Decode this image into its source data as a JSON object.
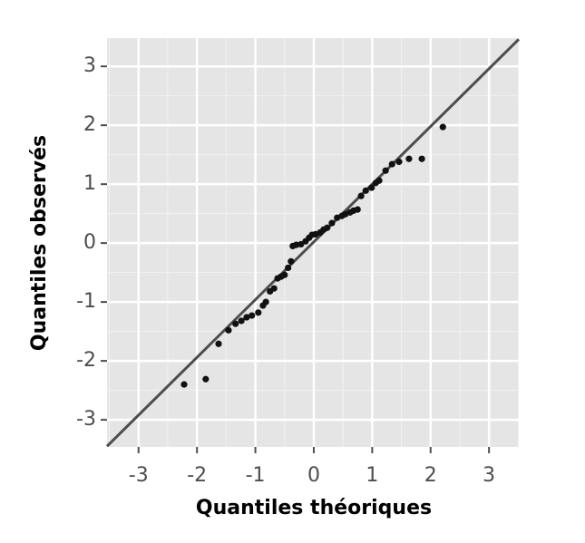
{
  "chart_data": {
    "type": "scatter",
    "x_label": "Quantiles théoriques",
    "y_label": "Quantiles observés",
    "x": [
      -2.22,
      -1.85,
      -1.63,
      -1.46,
      -1.34,
      -1.24,
      -1.15,
      -1.06,
      -0.95,
      -0.87,
      -0.82,
      -0.75,
      -0.68,
      -0.62,
      -0.56,
      -0.5,
      -0.44,
      -0.39,
      -0.36,
      -0.3,
      -0.22,
      -0.14,
      -0.08,
      -0.03,
      0.03,
      0.11,
      0.17,
      0.23,
      0.31,
      0.4,
      0.48,
      0.54,
      0.62,
      0.68,
      0.75,
      0.81,
      0.89,
      0.99,
      1.06,
      1.12,
      1.23,
      1.34,
      1.46,
      1.63,
      1.85,
      2.21
    ],
    "values": [
      -2.4,
      -2.31,
      -1.71,
      -1.48,
      -1.37,
      -1.32,
      -1.26,
      -1.23,
      -1.18,
      -1.06,
      -1.0,
      -0.82,
      -0.77,
      -0.6,
      -0.57,
      -0.54,
      -0.42,
      -0.31,
      -0.05,
      -0.03,
      -0.02,
      0.03,
      0.09,
      0.14,
      0.15,
      0.18,
      0.23,
      0.26,
      0.34,
      0.43,
      0.46,
      0.49,
      0.52,
      0.55,
      0.57,
      0.8,
      0.89,
      0.94,
      1.02,
      1.06,
      1.23,
      1.34,
      1.38,
      1.43,
      1.43,
      1.97
    ],
    "color": "#111111",
    "reference_line": {
      "intercept": 0.02,
      "slope": 0.98,
      "color": "#4d4d4d"
    },
    "xlim": [
      -3.54,
      3.51
    ],
    "ylim": [
      -3.46,
      3.48
    ],
    "xticks": [
      -3,
      -2,
      -1,
      0,
      1,
      2,
      3
    ],
    "yticks": [
      -3,
      -2,
      -1,
      0,
      1,
      2,
      3
    ],
    "xminor": [
      -3.5,
      -2.5,
      -1.5,
      -0.5,
      0.5,
      1.5,
      2.5,
      3.5
    ],
    "yminor": [
      -2.5,
      -1.5,
      -0.5,
      0.5,
      1.5,
      2.5
    ],
    "grid": true,
    "panel_color": "#e5e5e5"
  }
}
